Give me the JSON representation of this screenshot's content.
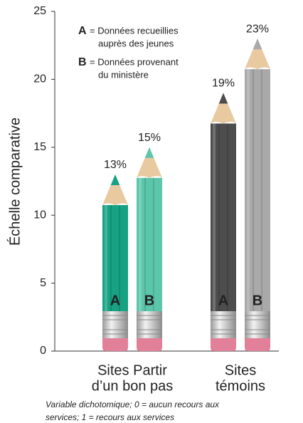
{
  "chart_data": {
    "type": "pencil-bar",
    "y_label": "Échelle comparative",
    "categories": [
      [
        "Sites Partir",
        "d’un bon pas"
      ],
      [
        "Sites",
        "témoins"
      ]
    ],
    "series": [
      {
        "name": "A",
        "description": [
          "= Données recueillies",
          "auprès des jeunes"
        ],
        "colors": [
          "#17a283",
          "#4d4d4d"
        ],
        "values": [
          13,
          19
        ],
        "value_labels": [
          "13%",
          "19%"
        ]
      },
      {
        "name": "B",
        "description": [
          "= Données provenant",
          "du ministère"
        ],
        "colors": [
          "#5cc6aa",
          "#a9a9a9"
        ],
        "values": [
          15,
          23
        ],
        "value_labels": [
          "15%",
          "23%"
        ]
      }
    ],
    "ylim": [
      0,
      25
    ],
    "yticks": [
      0,
      5,
      10,
      15,
      20,
      25
    ],
    "note": [
      "Variable dichotomique; 0 = aucun recours aux",
      "services; 1 = recours aux services"
    ]
  }
}
